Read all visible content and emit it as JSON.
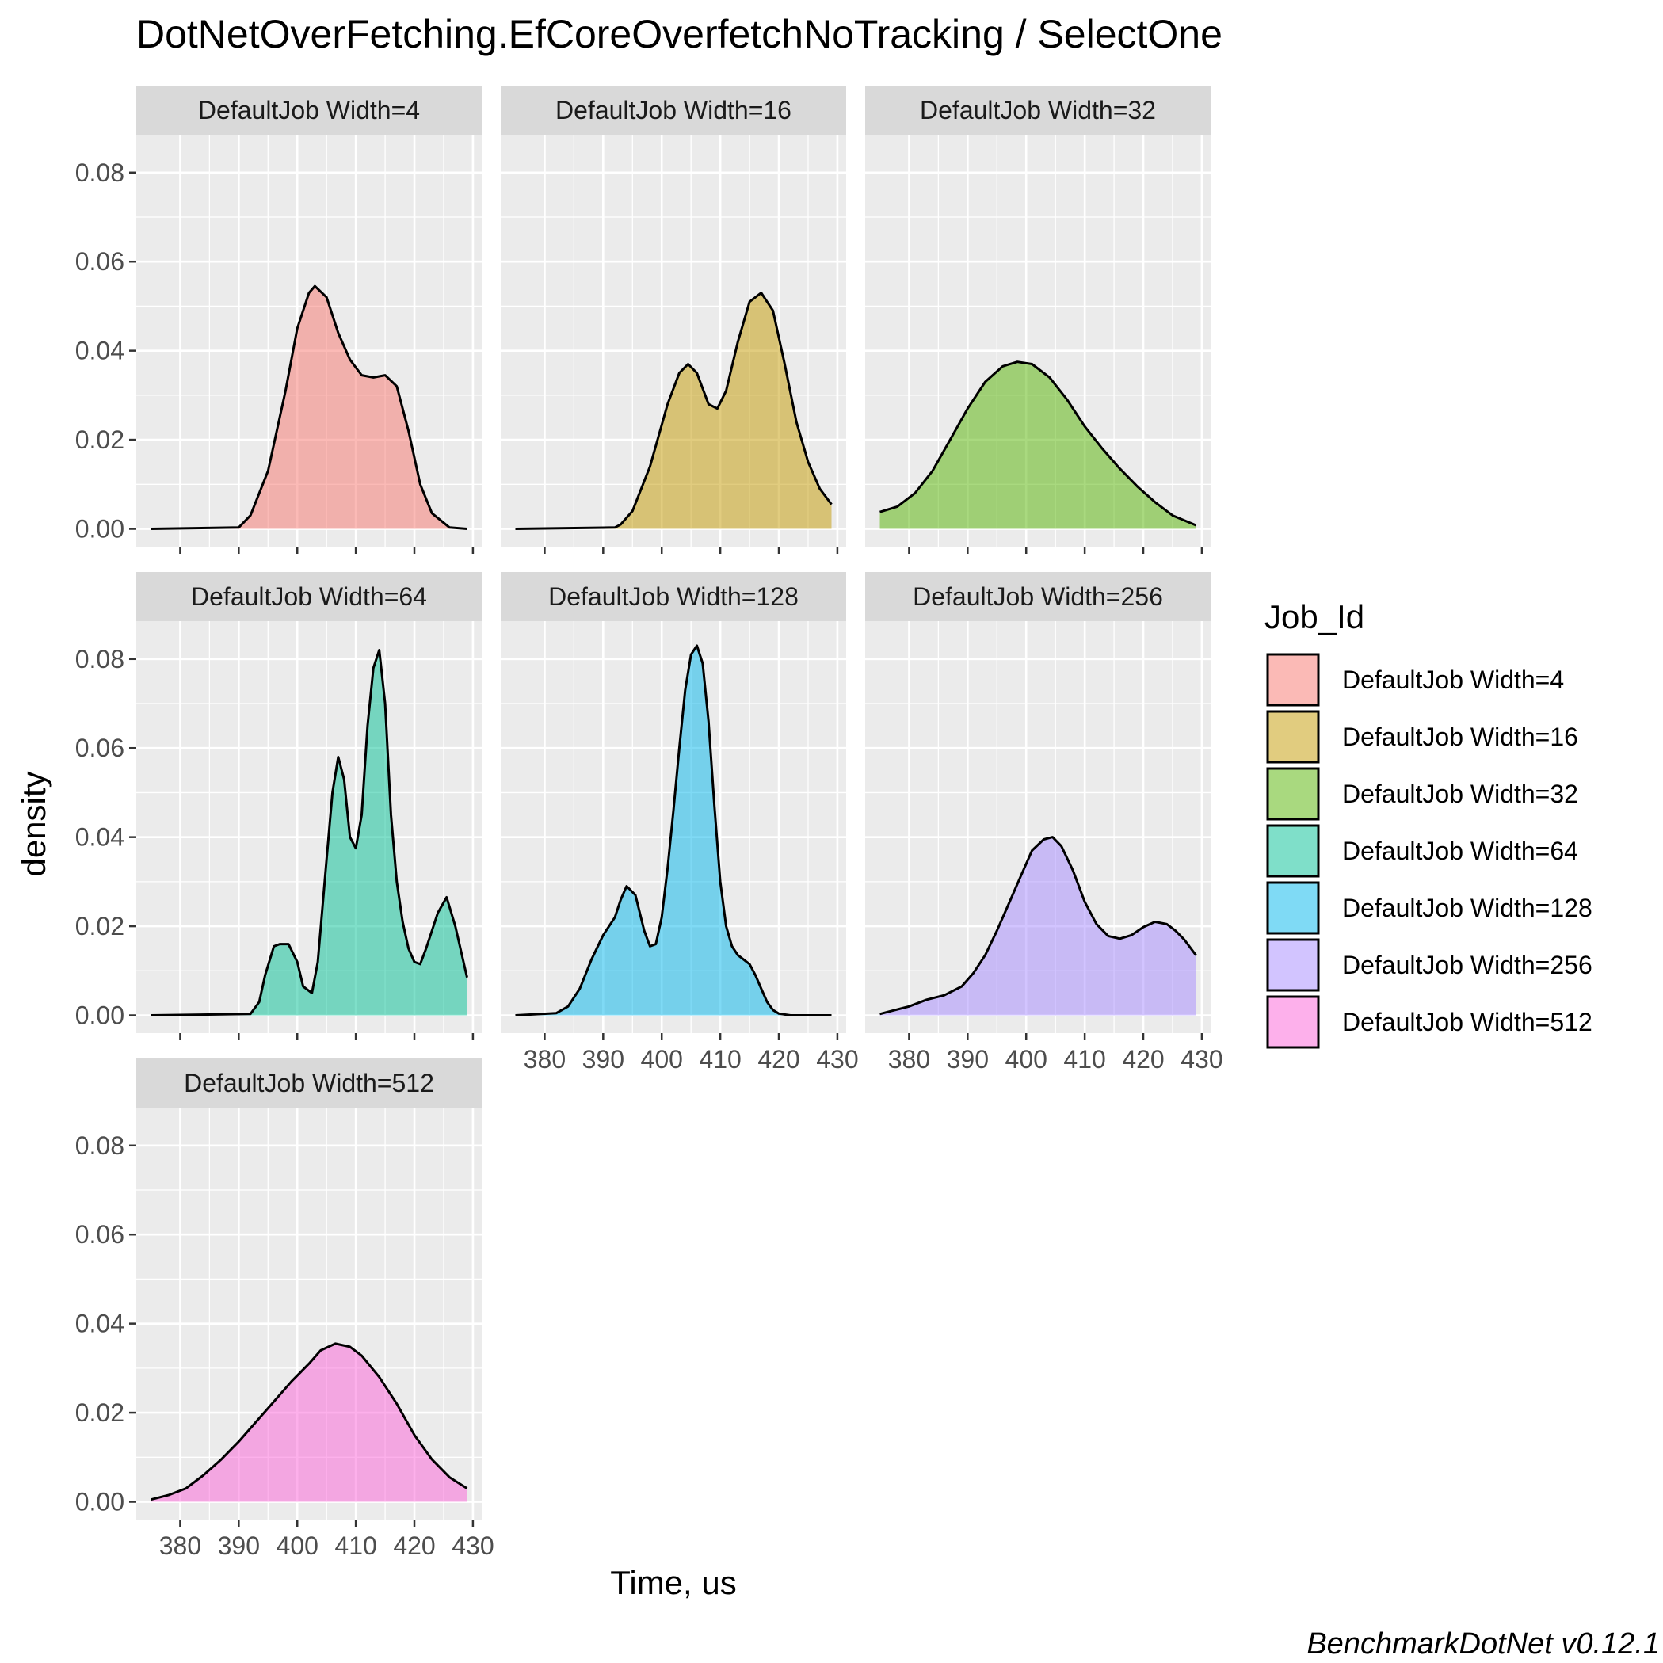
{
  "chart_data": {
    "type": "area",
    "subtype": "faceted density plot",
    "title": "DotNetOverFetching.EfCoreOverfetchNoTracking / SelectOne",
    "xlabel": "Time, us",
    "ylabel": "density",
    "caption": "BenchmarkDotNet v0.12.1",
    "xlim": [
      372.5,
      431.5
    ],
    "ylim": [
      -0.004,
      0.0885
    ],
    "x_ticks": [
      380,
      390,
      400,
      410,
      420,
      430
    ],
    "x_tick_labels": [
      "380",
      "390",
      "400",
      "410",
      "420",
      "430"
    ],
    "y_ticks": [
      0,
      0.02,
      0.04,
      0.06,
      0.08
    ],
    "y_tick_labels": [
      "0.00",
      "0.02",
      "0.04",
      "0.06",
      "0.08"
    ],
    "grid": true,
    "legend": {
      "title": "Job_Id",
      "position": "right"
    },
    "series": [
      {
        "name": "DefaultJob Width=4",
        "color": "#F8766D",
        "x": [
          375,
          390,
          392,
          395,
          398,
          400,
          402,
          403,
          405,
          407,
          409,
          411,
          413,
          415,
          417,
          419,
          421,
          423,
          426,
          429
        ],
        "values": [
          0,
          0.0003,
          0.003,
          0.013,
          0.031,
          0.045,
          0.053,
          0.0545,
          0.052,
          0.044,
          0.038,
          0.0345,
          0.034,
          0.0345,
          0.032,
          0.022,
          0.01,
          0.0035,
          0.0003,
          0
        ]
      },
      {
        "name": "DefaultJob Width=16",
        "color": "#C49A00",
        "x": [
          375,
          392,
          393,
          395,
          398,
          401,
          403,
          404.5,
          406,
          408,
          409.5,
          411,
          413,
          415,
          417,
          419,
          421,
          423,
          425,
          427,
          429
        ],
        "values": [
          0,
          0.0003,
          0.001,
          0.004,
          0.014,
          0.028,
          0.035,
          0.037,
          0.035,
          0.028,
          0.027,
          0.031,
          0.042,
          0.051,
          0.053,
          0.049,
          0.037,
          0.024,
          0.015,
          0.009,
          0.0055
        ]
      },
      {
        "name": "DefaultJob Width=32",
        "color": "#53B400",
        "x": [
          375,
          378,
          381,
          384,
          387,
          390,
          393,
          396,
          398.5,
          401,
          404,
          407,
          410,
          413,
          416,
          419,
          422,
          425,
          429
        ],
        "values": [
          0.0038,
          0.005,
          0.008,
          0.013,
          0.02,
          0.027,
          0.033,
          0.0365,
          0.0375,
          0.037,
          0.034,
          0.029,
          0.023,
          0.018,
          0.0135,
          0.0095,
          0.006,
          0.003,
          0.0008
        ]
      },
      {
        "name": "DefaultJob Width=64",
        "color": "#00C094",
        "x": [
          375,
          392,
          393.5,
          394.5,
          396,
          397,
          398.5,
          400,
          401,
          402.5,
          403.5,
          405,
          406,
          407,
          408,
          409,
          410,
          411,
          412,
          413,
          414,
          415,
          416,
          417,
          418,
          419,
          420,
          421,
          422,
          424,
          425.5,
          427,
          429
        ],
        "values": [
          0,
          0.0003,
          0.003,
          0.009,
          0.0155,
          0.016,
          0.016,
          0.012,
          0.0065,
          0.005,
          0.012,
          0.035,
          0.05,
          0.058,
          0.053,
          0.04,
          0.0375,
          0.045,
          0.065,
          0.078,
          0.082,
          0.07,
          0.045,
          0.03,
          0.021,
          0.015,
          0.012,
          0.0115,
          0.015,
          0.023,
          0.0265,
          0.02,
          0.0085
        ]
      },
      {
        "name": "DefaultJob Width=128",
        "color": "#00B6EB",
        "x": [
          375,
          382,
          384,
          386,
          388,
          390,
          392,
          393,
          394,
          395.5,
          397,
          398,
          399,
          400,
          401,
          402,
          403,
          404,
          405,
          406,
          407,
          408,
          409,
          410,
          411,
          412,
          413,
          414,
          415,
          416,
          417,
          418,
          419,
          420,
          422,
          429
        ],
        "values": [
          0,
          0.0005,
          0.002,
          0.006,
          0.0125,
          0.018,
          0.022,
          0.026,
          0.029,
          0.027,
          0.019,
          0.0155,
          0.016,
          0.022,
          0.033,
          0.046,
          0.06,
          0.073,
          0.081,
          0.083,
          0.079,
          0.066,
          0.047,
          0.03,
          0.02,
          0.0155,
          0.0135,
          0.0125,
          0.0115,
          0.009,
          0.006,
          0.003,
          0.0012,
          0.0004,
          0,
          0
        ]
      },
      {
        "name": "DefaultJob Width=256",
        "color": "#A58AFF",
        "x": [
          375,
          377,
          380,
          383,
          386,
          389,
          391,
          393,
          395,
          397,
          399,
          401,
          403,
          404.5,
          406,
          408,
          410,
          412,
          414,
          416,
          418,
          420,
          422,
          424,
          425.5,
          427,
          429
        ],
        "values": [
          0.0003,
          0.001,
          0.002,
          0.0035,
          0.0045,
          0.0065,
          0.0095,
          0.0135,
          0.019,
          0.025,
          0.031,
          0.037,
          0.0395,
          0.04,
          0.038,
          0.0325,
          0.0255,
          0.0205,
          0.0178,
          0.0172,
          0.018,
          0.0198,
          0.021,
          0.0205,
          0.019,
          0.017,
          0.0135
        ]
      },
      {
        "name": "DefaultJob Width=512",
        "color": "#FB61D7",
        "x": [
          375,
          378,
          381,
          384,
          387,
          390,
          393,
          396,
          399,
          402,
          404,
          406.5,
          409,
          411,
          414,
          417,
          420,
          423,
          426,
          429
        ],
        "values": [
          0.0005,
          0.0015,
          0.003,
          0.006,
          0.0095,
          0.0135,
          0.018,
          0.0225,
          0.027,
          0.031,
          0.034,
          0.0355,
          0.0348,
          0.0328,
          0.028,
          0.022,
          0.015,
          0.0095,
          0.0055,
          0.003
        ]
      }
    ]
  }
}
